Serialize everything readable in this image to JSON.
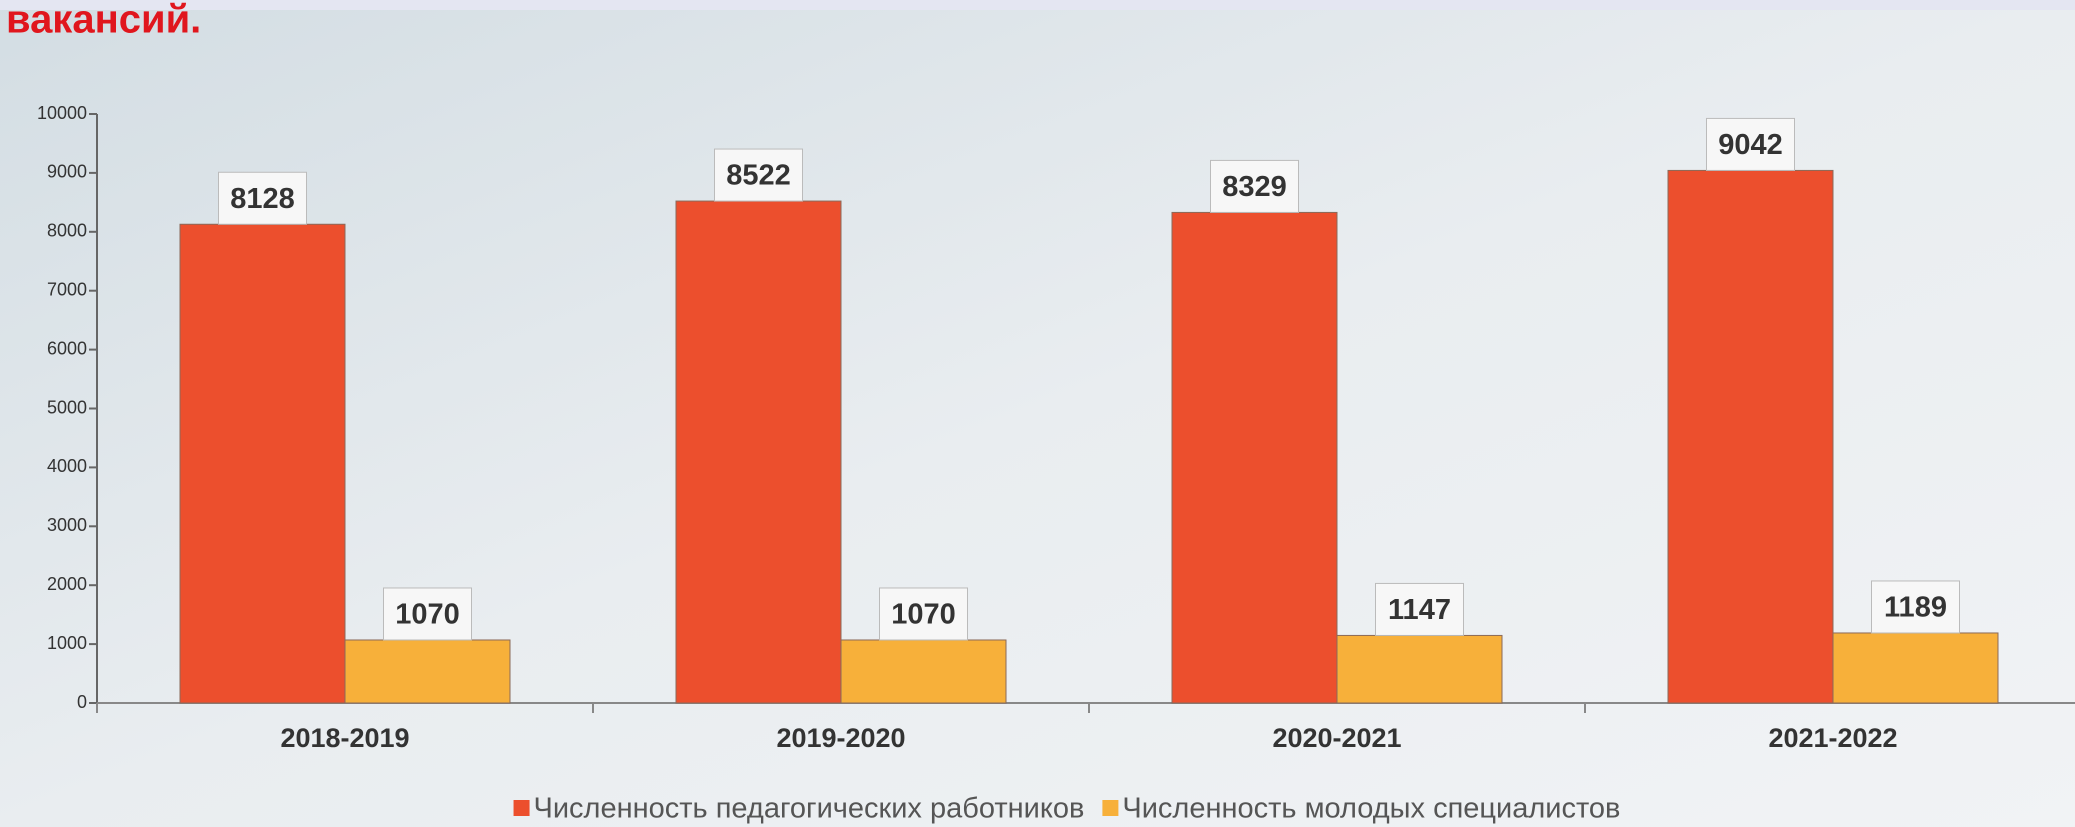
{
  "chart_data": {
    "type": "bar",
    "title": "вакансий.",
    "categories": [
      "2018-2019",
      "2019-2020",
      "2020-2021",
      "2021-2022"
    ],
    "series": [
      {
        "name": "Численность педагогических работников",
        "color": "#ec4f2d",
        "values": [
          8128,
          8522,
          8329,
          9042
        ]
      },
      {
        "name": "Численность молодых специалистов",
        "color": "#f7b03a",
        "values": [
          1070,
          1070,
          1147,
          1189
        ]
      }
    ],
    "ylim": [
      0,
      10000
    ],
    "yticks": [
      0,
      1000,
      2000,
      3000,
      4000,
      5000,
      6000,
      7000,
      8000,
      9000,
      10000
    ],
    "grid": false,
    "legend": "bottom"
  }
}
